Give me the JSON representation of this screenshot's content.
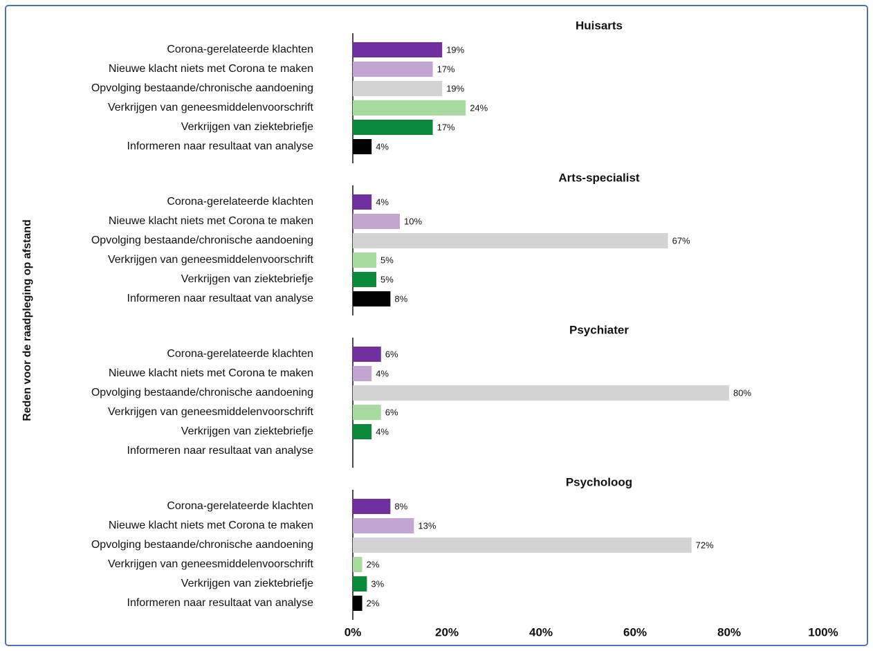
{
  "chart_data": {
    "type": "bar",
    "orientation": "horizontal",
    "ylabel": "Reden voor de raadpleging op afstand",
    "categories": [
      "Corona-gerelateerde klachten",
      "Nieuwe klacht niets met Corona te maken",
      "Opvolging bestaande/chronische aandoening",
      "Verkrijgen van geneesmiddelenvoorschrift",
      "Verkrijgen van ziektebriefje",
      "Informeren naar resultaat van analyse"
    ],
    "colors": [
      "#7030a0",
      "#c3a5d1",
      "#d3d3d3",
      "#a8dba0",
      "#0a8a3a",
      "#000000"
    ],
    "xlim": [
      0,
      100
    ],
    "xticks": [
      {
        "value": 0,
        "label": "0%"
      },
      {
        "value": 20,
        "label": "20%"
      },
      {
        "value": 40,
        "label": "40%"
      },
      {
        "value": 60,
        "label": "60%"
      },
      {
        "value": 80,
        "label": "80%"
      },
      {
        "value": 100,
        "label": "100%"
      }
    ],
    "panels": [
      {
        "title": "Huisarts",
        "values": [
          19,
          17,
          19,
          24,
          17,
          4
        ],
        "value_labels": [
          "19%",
          "17%",
          "19%",
          "24%",
          "17%",
          "4%"
        ]
      },
      {
        "title": "Arts-specialist",
        "values": [
          4,
          10,
          67,
          5,
          5,
          8
        ],
        "value_labels": [
          "4%",
          "10%",
          "67%",
          "5%",
          "5%",
          "8%"
        ]
      },
      {
        "title": "Psychiater",
        "values": [
          6,
          4,
          80,
          6,
          4,
          null
        ],
        "value_labels": [
          "6%",
          "4%",
          "80%",
          "6%",
          "4%",
          null
        ]
      },
      {
        "title": "Psycholoog",
        "values": [
          8,
          13,
          72,
          2,
          3,
          2
        ],
        "value_labels": [
          "8%",
          "13%",
          "72%",
          "2%",
          "3%",
          "2%"
        ]
      }
    ]
  }
}
